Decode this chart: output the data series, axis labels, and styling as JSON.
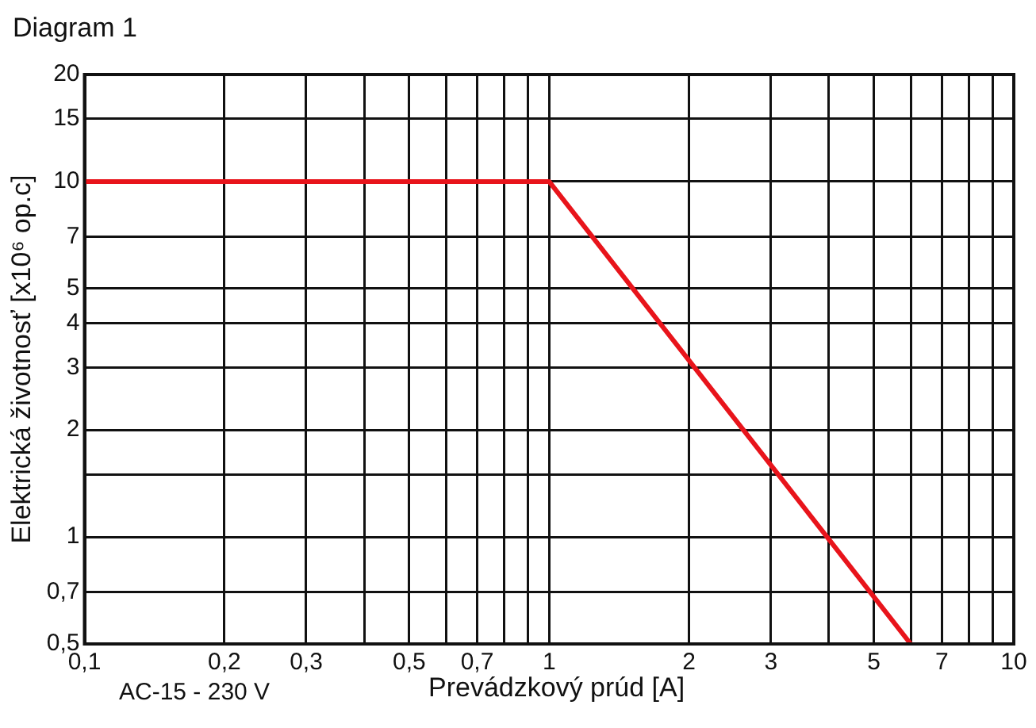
{
  "chart_data": {
    "type": "line",
    "title": "Diagram 1",
    "xlabel": "Prevádzkový prúd [A]",
    "ylabel": "Elektrická životnosť [x10⁶ op.c]",
    "annotations": [
      "AC-15 - 230 V"
    ],
    "x": [
      0.1,
      1,
      6
    ],
    "series": [
      {
        "color": "#e8141b",
        "values": [
          10,
          10,
          0.5
        ]
      }
    ],
    "log": "xy",
    "grid": true,
    "legend": false,
    "marker": "none",
    "line_style": "solid",
    "xlim": [
      0.1,
      10
    ],
    "ylim": [
      0.5,
      20
    ],
    "xticks": [
      {
        "value": 0.1,
        "label": "0,1"
      },
      {
        "value": 0.2,
        "label": "0,2"
      },
      {
        "value": 0.3,
        "label": "0,3"
      },
      {
        "value": 0.4,
        "label": null
      },
      {
        "value": 0.5,
        "label": "0,5"
      },
      {
        "value": 0.6,
        "label": null
      },
      {
        "value": 0.7,
        "label": "0,7"
      },
      {
        "value": 0.8,
        "label": null
      },
      {
        "value": 0.9,
        "label": null
      },
      1,
      2,
      3,
      {
        "value": 4,
        "label": null
      },
      5,
      {
        "value": 6,
        "label": null
      },
      7,
      {
        "value": 8,
        "label": null
      },
      {
        "value": 9,
        "label": null
      },
      10
    ],
    "yticks": [
      {
        "value": 0.5,
        "label": "0,5"
      },
      {
        "value": 0.7,
        "label": "0,7"
      },
      1,
      {
        "value": 1.5,
        "label": null
      },
      2,
      3,
      4,
      5,
      7,
      10,
      15,
      20
    ]
  }
}
